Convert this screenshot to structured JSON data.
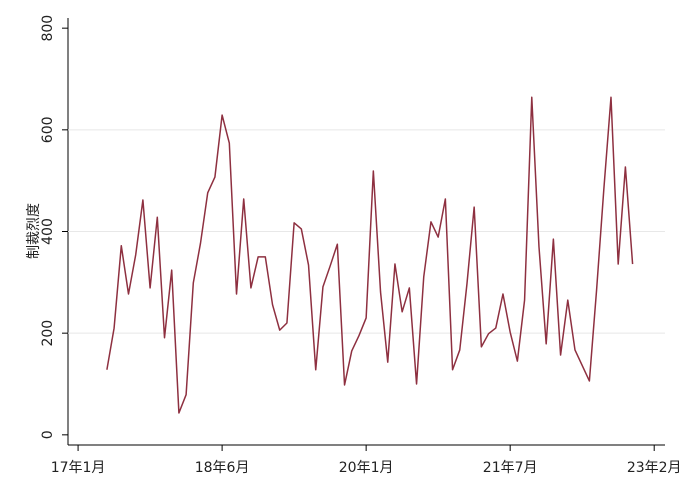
{
  "chart_data": {
    "type": "line",
    "ylabel": "制裁烈度",
    "x": [
      4,
      5,
      6,
      7,
      8,
      9,
      10,
      11,
      12,
      13,
      14,
      15,
      16,
      17,
      18,
      19,
      20,
      21,
      22,
      23,
      24,
      25,
      26,
      27,
      28,
      29,
      30,
      31,
      32,
      33,
      34,
      35,
      36,
      37,
      38,
      39,
      40,
      41,
      42,
      43,
      44,
      45,
      46,
      47,
      48,
      49,
      50,
      51,
      52,
      53,
      54,
      55,
      56,
      57,
      58,
      59,
      60,
      61,
      62,
      63,
      64,
      65,
      66,
      67,
      68,
      69,
      71,
      72,
      73,
      74,
      75,
      76,
      77
    ],
    "series": [
      {
        "color": "#8e3040",
        "values": [
          128,
          210,
          372,
          277,
          354,
          462,
          289,
          428,
          191,
          324,
          43,
          79,
          299,
          377,
          476,
          507,
          629,
          574,
          277,
          464,
          289,
          350,
          350,
          256,
          206,
          220,
          417,
          405,
          334,
          128,
          291,
          332,
          375,
          98,
          165,
          195,
          230,
          519,
          281,
          143,
          336,
          242,
          289,
          100,
          311,
          419,
          389,
          464,
          128,
          167,
          297,
          448,
          173,
          199,
          210,
          277,
          202,
          145,
          265,
          664,
          370,
          179,
          385,
          157,
          265,
          167,
          106,
          285,
          482,
          664,
          336,
          527,
          336
        ]
      }
    ],
    "xlim": [
      -1.4,
      81.5
    ],
    "xticks": [
      {
        "value": 0,
        "label": "17年1月"
      },
      {
        "value": 20,
        "label": "18年6月"
      },
      {
        "value": 40,
        "label": "20年1月"
      },
      {
        "value": 60,
        "label": "21年7月"
      },
      {
        "value": 80,
        "label": "23年2月"
      }
    ],
    "ylim": [
      -20,
      820
    ],
    "yticks": [
      0,
      200,
      400,
      600,
      800
    ],
    "grid": true
  }
}
